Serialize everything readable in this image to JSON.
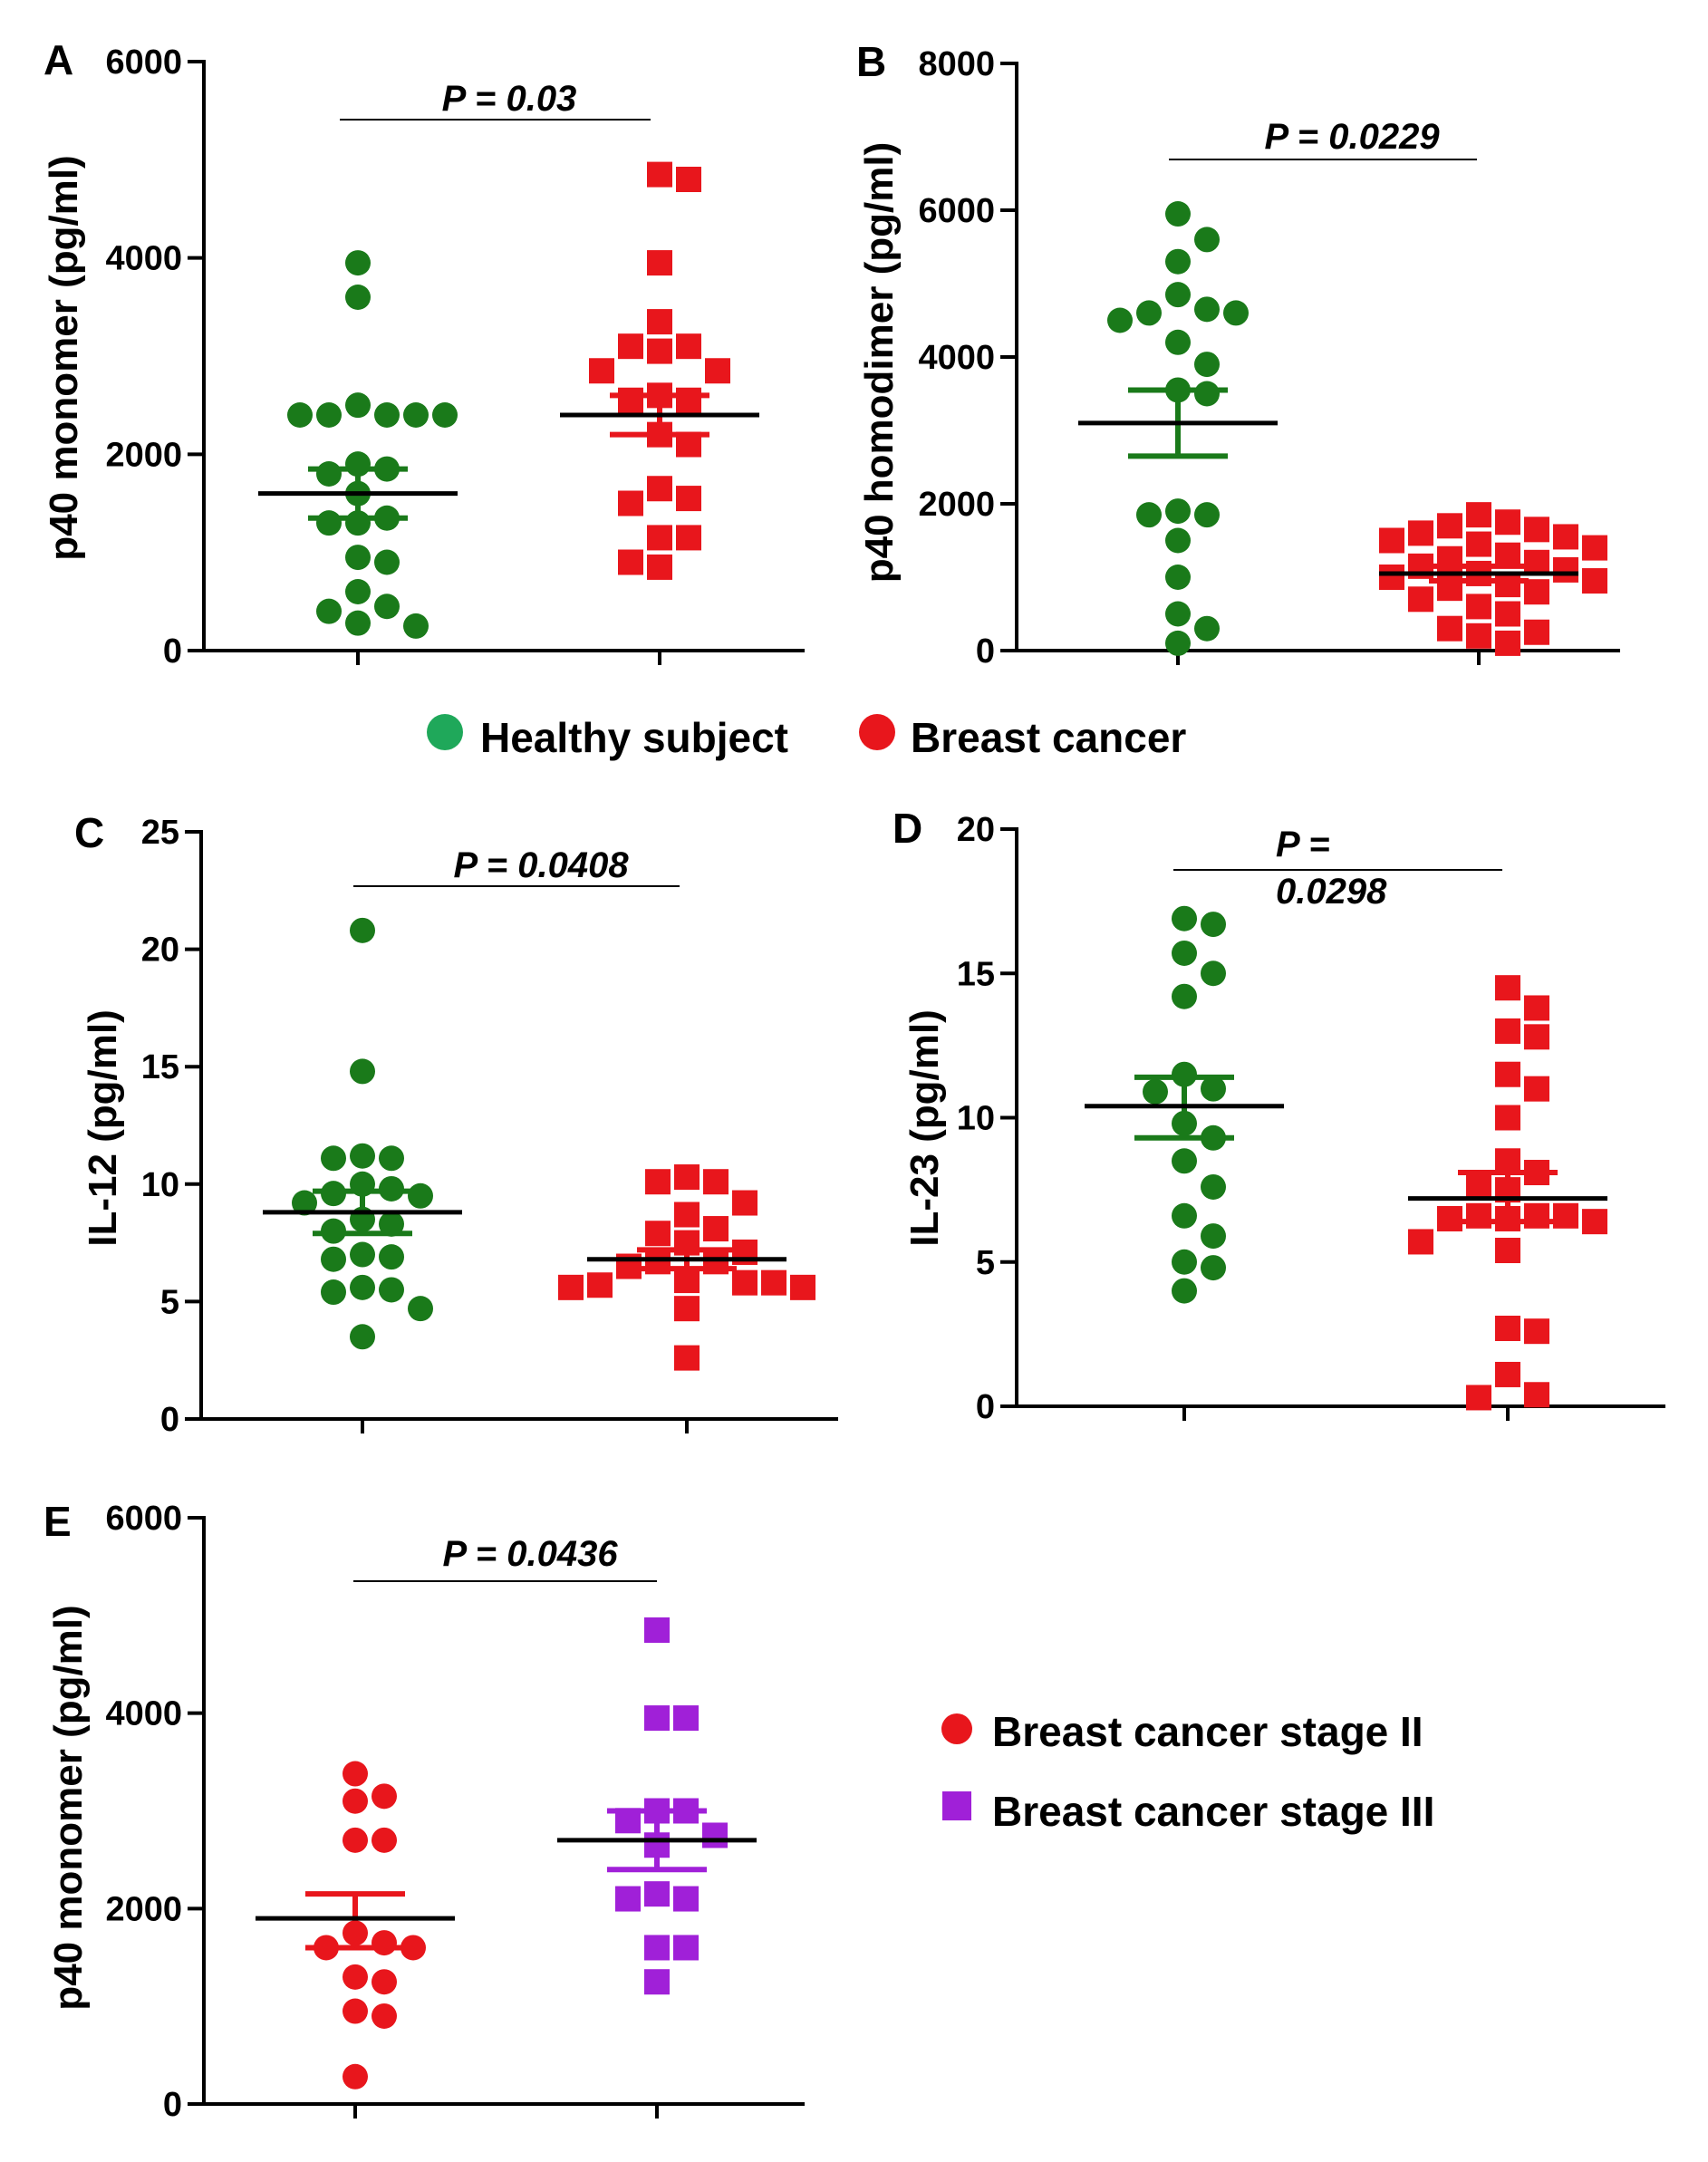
{
  "figure": {
    "legend_top": [
      {
        "label": "Healthy subject",
        "color": "#1fa85a",
        "marker": "circle"
      },
      {
        "label": "Breast cancer",
        "color": "#e8161c",
        "marker": "circle"
      }
    ],
    "legend_bottom": [
      {
        "label": "Breast cancer stage II",
        "color": "#e8161c",
        "marker": "circle"
      },
      {
        "label": "Breast cancer stage III",
        "color": "#a020d8",
        "marker": "square"
      }
    ]
  },
  "chart_data": [
    {
      "id": "A",
      "type": "scatter",
      "panel_label": "A",
      "ylabel": "p40 monomer (pg/ml)",
      "xlabel": "",
      "ylim": [
        0,
        6000
      ],
      "yticks": [
        0,
        2000,
        4000,
        6000
      ],
      "ytick_labels": [
        "0",
        "2000",
        "4000",
        "6000"
      ],
      "pvalue_text": "P = 0.03",
      "series": [
        {
          "name": "Healthy subject",
          "color": "#1a7a1a",
          "marker": "circle",
          "mean": 1600,
          "sem_low": 1350,
          "sem_high": 1850,
          "values": [
            3950,
            3600,
            2500,
            2400,
            2400,
            2400,
            2400,
            2400,
            1900,
            1850,
            1800,
            1600,
            1350,
            1300,
            1300,
            950,
            900,
            600,
            450,
            400,
            280,
            250
          ]
        },
        {
          "name": "Breast cancer",
          "color": "#e8161c",
          "marker": "square",
          "mean": 2400,
          "sem_low": 2200,
          "sem_high": 2600,
          "values": [
            4850,
            4800,
            3950,
            3350,
            3100,
            3100,
            3050,
            2850,
            2850,
            2600,
            2550,
            2550,
            2200,
            2100,
            1650,
            1550,
            1500,
            1150,
            1150,
            900,
            850
          ]
        }
      ]
    },
    {
      "id": "B",
      "type": "scatter",
      "panel_label": "B",
      "ylabel": "p40 homodimer (pg/ml)",
      "xlabel": "",
      "ylim": [
        0,
        8000
      ],
      "yticks": [
        0,
        2000,
        4000,
        6000,
        8000
      ],
      "ytick_labels": [
        "0",
        "2000",
        "4000",
        "6000",
        "8000"
      ],
      "pvalue_text": "P = 0.0229",
      "series": [
        {
          "name": "Healthy subject",
          "color": "#1a7a1a",
          "marker": "circle",
          "mean": 3100,
          "sem_low": 2650,
          "sem_high": 3550,
          "values": [
            5950,
            5600,
            5300,
            4850,
            4650,
            4600,
            4600,
            4500,
            4200,
            3900,
            3550,
            3500,
            1900,
            1850,
            1850,
            1500,
            1000,
            500,
            300,
            100
          ]
        },
        {
          "name": "Breast cancer",
          "color": "#e8161c",
          "marker": "square",
          "mean": 1050,
          "sem_low": 950,
          "sem_high": 1150,
          "values": [
            1850,
            1750,
            1700,
            1650,
            1600,
            1550,
            1500,
            1450,
            1400,
            1300,
            1250,
            1200,
            1150,
            1100,
            1050,
            1000,
            950,
            900,
            850,
            800,
            700,
            600,
            500,
            300,
            250,
            200,
            100
          ]
        }
      ]
    },
    {
      "id": "C",
      "type": "scatter",
      "panel_label": "C",
      "ylabel": "IL-12 (pg/ml)",
      "xlabel": "",
      "ylim": [
        0,
        25
      ],
      "yticks": [
        0,
        5,
        10,
        15,
        20,
        25
      ],
      "ytick_labels": [
        "0",
        "5",
        "10",
        "15",
        "20",
        "25"
      ],
      "pvalue_text": "P = 0.0408",
      "series": [
        {
          "name": "Healthy subject",
          "color": "#1a7a1a",
          "marker": "circle",
          "mean": 8.8,
          "sem_low": 7.9,
          "sem_high": 9.7,
          "values": [
            20.8,
            14.8,
            11.2,
            11.1,
            11.1,
            10.0,
            9.8,
            9.6,
            9.5,
            9.2,
            8.5,
            8.3,
            8.0,
            7.0,
            6.9,
            6.8,
            5.6,
            5.5,
            5.4,
            4.7,
            3.5
          ]
        },
        {
          "name": "Breast cancer",
          "color": "#e8161c",
          "marker": "square",
          "mean": 6.8,
          "sem_low": 6.4,
          "sem_high": 7.2,
          "values": [
            10.3,
            10.1,
            10.1,
            9.2,
            8.7,
            8.1,
            7.9,
            7.5,
            7.1,
            6.7,
            6.7,
            6.5,
            5.9,
            5.8,
            5.8,
            5.7,
            5.6,
            5.6,
            4.7,
            2.6
          ]
        }
      ]
    },
    {
      "id": "D",
      "type": "scatter",
      "panel_label": "D",
      "ylabel": "IL-23 (pg/ml)",
      "xlabel": "",
      "ylim": [
        0,
        20
      ],
      "yticks": [
        0,
        5,
        10,
        15,
        20
      ],
      "ytick_labels": [
        "0",
        "5",
        "10",
        "15",
        "20"
      ],
      "pvalue_lines": [
        "P =",
        "0.0298"
      ],
      "series": [
        {
          "name": "Healthy subject",
          "color": "#1a7a1a",
          "marker": "circle",
          "mean": 10.4,
          "sem_low": 9.3,
          "sem_high": 11.4,
          "values": [
            16.9,
            16.7,
            15.7,
            15.0,
            14.2,
            11.5,
            11.0,
            10.9,
            9.8,
            9.3,
            8.5,
            7.6,
            6.6,
            5.9,
            5.0,
            4.8,
            4.0
          ]
        },
        {
          "name": "Breast cancer",
          "color": "#e8161c",
          "marker": "square",
          "mean": 7.2,
          "sem_low": 6.4,
          "sem_high": 8.1,
          "values": [
            14.5,
            13.8,
            13.0,
            12.8,
            11.5,
            11.0,
            10.0,
            8.5,
            8.1,
            7.7,
            7.5,
            6.6,
            6.6,
            6.6,
            6.5,
            6.5,
            6.4,
            5.7,
            5.4,
            2.7,
            2.6,
            1.1,
            0.4,
            0.3
          ]
        }
      ]
    },
    {
      "id": "E",
      "type": "scatter",
      "panel_label": "E",
      "ylabel": "p40 monomer (pg/ml)",
      "xlabel": "",
      "ylim": [
        0,
        6000
      ],
      "yticks": [
        0,
        2000,
        4000,
        6000
      ],
      "ytick_labels": [
        "0",
        "2000",
        "4000",
        "6000"
      ],
      "pvalue_text": "P = 0.0436",
      "series": [
        {
          "name": "Breast cancer stage II",
          "color": "#e8161c",
          "marker": "circle",
          "mean": 1900,
          "sem_low": 1600,
          "sem_high": 2150,
          "values": [
            3380,
            3150,
            3100,
            2700,
            2700,
            1750,
            1650,
            1600,
            1600,
            1300,
            1250,
            950,
            900,
            280
          ]
        },
        {
          "name": "Breast cancer stage III",
          "color": "#a020d8",
          "marker": "square",
          "mean": 2700,
          "sem_low": 2400,
          "sem_high": 3000,
          "values": [
            4850,
            3950,
            3950,
            3000,
            3000,
            2900,
            2750,
            2650,
            2150,
            2100,
            2100,
            1600,
            1600,
            1250
          ]
        }
      ]
    }
  ]
}
